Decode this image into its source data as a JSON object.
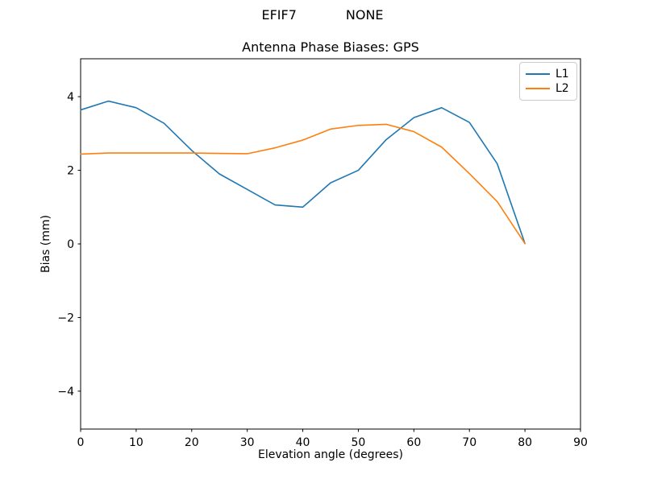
{
  "page": {
    "background": "#ffffff",
    "spine_color": "#000000",
    "tick_color": "#000000",
    "legend_border_color": "#cccccc"
  },
  "chart_data": {
    "type": "line",
    "suptitle": "EFIF7            NONE",
    "title": "Antenna Phase Biases: GPS",
    "xlabel": "Elevation angle (degrees)",
    "ylabel": "Bias (mm)",
    "xlim": [
      0,
      90
    ],
    "ylim": [
      -5.03,
      5.03
    ],
    "grid": false,
    "xticks": {
      "values": [
        0,
        10,
        20,
        30,
        40,
        50,
        60,
        70,
        80,
        90
      ],
      "labels": [
        "0",
        "10",
        "20",
        "30",
        "40",
        "50",
        "60",
        "70",
        "80",
        "90"
      ]
    },
    "yticks": {
      "values": [
        -4,
        -2,
        0,
        2,
        4
      ],
      "labels": [
        "−4",
        "−2",
        "0",
        "2",
        "4"
      ]
    },
    "x": [
      0,
      5,
      10,
      15,
      20,
      25,
      30,
      35,
      40,
      45,
      50,
      55,
      60,
      65,
      70,
      75,
      80
    ],
    "series": [
      {
        "name": "L1",
        "color": "#1f77b4",
        "values": [
          3.64,
          3.88,
          3.7,
          3.28,
          2.54,
          1.9,
          1.48,
          1.06,
          1.0,
          1.66,
          2.0,
          2.83,
          3.43,
          3.7,
          3.3,
          2.18,
          0.01
        ]
      },
      {
        "name": "L2",
        "color": "#ff7f0e",
        "values": [
          2.44,
          2.47,
          2.47,
          2.47,
          2.47,
          2.46,
          2.45,
          2.61,
          2.82,
          3.12,
          3.22,
          3.25,
          3.05,
          2.63,
          1.91,
          1.15,
          0.01
        ]
      }
    ],
    "legend": {
      "position": "upper right",
      "entries": [
        "L1",
        "L2"
      ]
    }
  }
}
